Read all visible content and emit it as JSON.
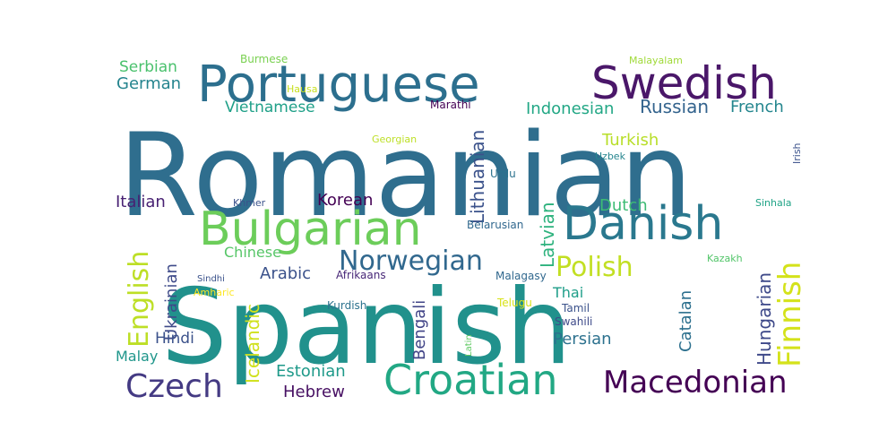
{
  "word_cloud": {
    "words": [
      {
        "text": "Romanian",
        "color": "#2f6e8e"
      },
      {
        "text": "Spanish",
        "color": "#21918c"
      },
      {
        "text": "Portuguese",
        "color": "#2c6f8e"
      },
      {
        "text": "Swedish",
        "color": "#4a1769"
      },
      {
        "text": "Bulgarian",
        "color": "#6ccd5a"
      },
      {
        "text": "Danish",
        "color": "#2a788e"
      },
      {
        "text": "Croatian",
        "color": "#22a884"
      },
      {
        "text": "Norwegian",
        "color": "#31688e"
      },
      {
        "text": "Macedonian",
        "color": "#440154"
      },
      {
        "text": "Polish",
        "color": "#c2df23"
      },
      {
        "text": "Finnish",
        "color": "#d4e21a"
      },
      {
        "text": "Czech",
        "color": "#443a83"
      },
      {
        "text": "English",
        "color": "#bddf26"
      },
      {
        "text": "Lithuanian",
        "color": "#3b528b"
      },
      {
        "text": "Hungarian",
        "color": "#3e4989"
      },
      {
        "text": "Russian",
        "color": "#33638d"
      },
      {
        "text": "Latvian",
        "color": "#2db27d"
      },
      {
        "text": "Icelandic",
        "color": "#d0e11c"
      },
      {
        "text": "Catalan",
        "color": "#2d708e"
      },
      {
        "text": "Estonian",
        "color": "#1f9a8a"
      },
      {
        "text": "Hebrew",
        "color": "#471063"
      },
      {
        "text": "Indonesian",
        "color": "#22a785"
      },
      {
        "text": "French",
        "color": "#24868e"
      },
      {
        "text": "Turkish",
        "color": "#b8de29"
      },
      {
        "text": "Ukrainian",
        "color": "#3e4a89"
      },
      {
        "text": "Arabic",
        "color": "#3b528b"
      },
      {
        "text": "Bengali",
        "color": "#414487"
      },
      {
        "text": "Persian",
        "color": "#2c718e"
      },
      {
        "text": "Dutch",
        "color": "#3dbc74"
      },
      {
        "text": "Chinese",
        "color": "#56c667"
      },
      {
        "text": "Korean",
        "color": "#440154"
      },
      {
        "text": "Italian",
        "color": "#482173"
      },
      {
        "text": "Serbian",
        "color": "#4ac16d"
      },
      {
        "text": "German",
        "color": "#25848e"
      },
      {
        "text": "Vietnamese",
        "color": "#1fa088"
      },
      {
        "text": "Hindi",
        "color": "#3b528b"
      },
      {
        "text": "Thai",
        "color": "#1f9e89"
      },
      {
        "text": "Malay",
        "color": "#1f968b"
      },
      {
        "text": "Burmese",
        "color": "#7ad151"
      },
      {
        "text": "Malayalam",
        "color": "#a0da39"
      },
      {
        "text": "Hausa",
        "color": "#c8e020"
      },
      {
        "text": "Marathi",
        "color": "#440154"
      },
      {
        "text": "Georgian",
        "color": "#bddf26"
      },
      {
        "text": "Urdu",
        "color": "#2c728e"
      },
      {
        "text": "Uzbek",
        "color": "#25858e"
      },
      {
        "text": "Irish",
        "color": "#3b528b"
      },
      {
        "text": "Belarusian",
        "color": "#31688e"
      },
      {
        "text": "Khmer",
        "color": "#3b528b"
      },
      {
        "text": "Sinhala",
        "color": "#20a386"
      },
      {
        "text": "Kazakh",
        "color": "#52c569"
      },
      {
        "text": "Sindhi",
        "color": "#3b528b"
      },
      {
        "text": "Amharic",
        "color": "#fde725"
      },
      {
        "text": "Afrikaans",
        "color": "#482878"
      },
      {
        "text": "Malagasy",
        "color": "#31688e"
      },
      {
        "text": "Kurdish",
        "color": "#2c728e"
      },
      {
        "text": "Telugu",
        "color": "#d8e219"
      },
      {
        "text": "Tamil",
        "color": "#3b528b"
      },
      {
        "text": "Swahili",
        "color": "#3e4a89"
      },
      {
        "text": "Latin",
        "color": "#5ec962"
      }
    ]
  }
}
